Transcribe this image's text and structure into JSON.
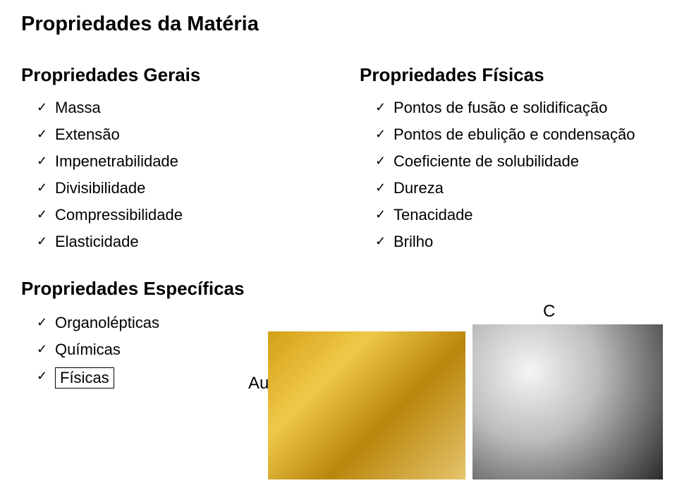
{
  "title": "Propriedades da Matéria",
  "left": {
    "heading": "Propriedades Gerais",
    "items": [
      "Massa",
      "Extensão",
      "Impenetrabilidade",
      "Divisibilidade",
      "Compressibilidade",
      "Elasticidade"
    ]
  },
  "right": {
    "heading": "Propriedades Físicas",
    "items": [
      "Pontos de fusão e solidificação",
      "Pontos de ebulição e condensação",
      "Coeficiente de solubilidade",
      "Dureza",
      "Tenacidade",
      "Brilho"
    ]
  },
  "lower": {
    "heading": "Propriedades Específicas",
    "items": [
      "Organolépticas",
      "Químicas",
      "Físicas"
    ]
  },
  "labels": {
    "au": "Au",
    "c": "C"
  }
}
